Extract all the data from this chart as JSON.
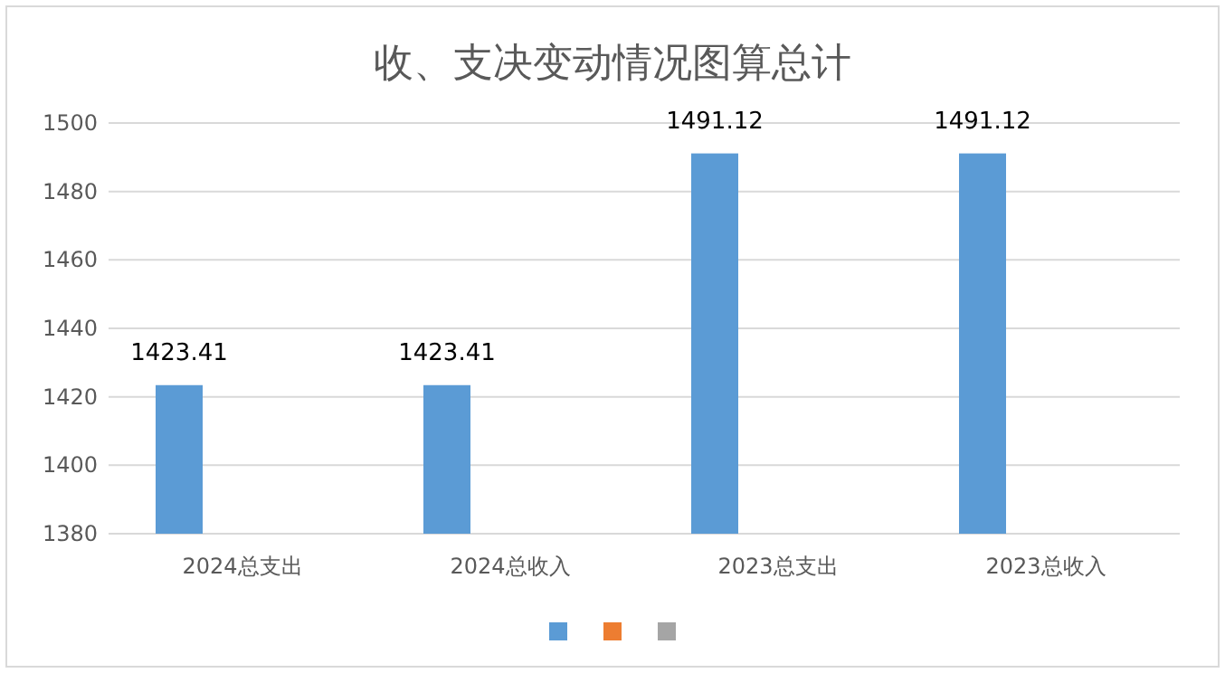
{
  "chart_data": {
    "type": "bar",
    "title": "收、支决变动情况图算总计",
    "categories": [
      "2024总支出",
      "2024总收入",
      "2023总支出",
      "2023总收入"
    ],
    "series": [
      {
        "color": "#5b9bd5",
        "values": [
          1423.41,
          1423.41,
          1491.12,
          1491.12
        ]
      },
      {
        "color": "#ed7d31",
        "values": [
          null,
          null,
          null,
          null
        ]
      },
      {
        "color": "#a5a5a5",
        "values": [
          null,
          null,
          null,
          null
        ]
      }
    ],
    "ylim": [
      1380,
      1500
    ],
    "yticks": [
      1380,
      1400,
      1420,
      1440,
      1460,
      1480,
      1500
    ],
    "grid": "y",
    "data_labels": true
  }
}
